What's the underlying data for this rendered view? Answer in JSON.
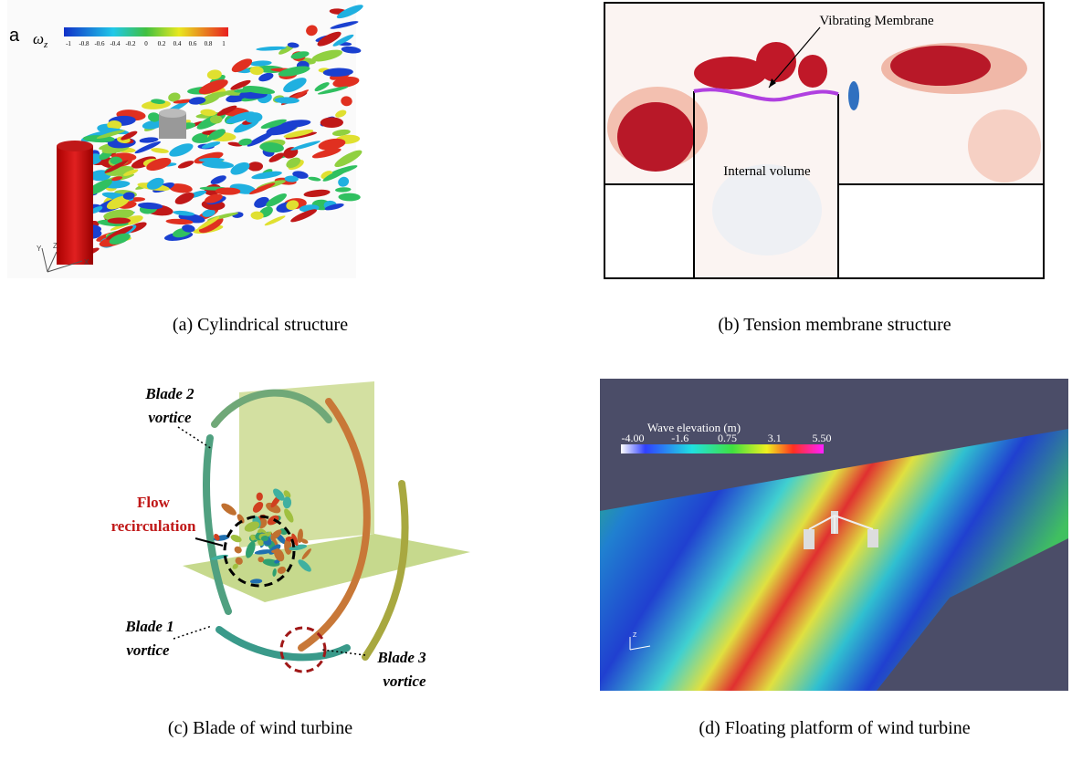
{
  "panels": [
    {
      "label": "a",
      "symbol": "ω",
      "symbol_sub": "z",
      "colorbar_labels": [
        "-1",
        "-0.8",
        "-0.6",
        "-0.4",
        "-0.2",
        "0",
        "0.2",
        "0.4",
        "0.6",
        "0.8",
        "1"
      ],
      "axes": [
        "Y",
        "Z",
        "X"
      ],
      "caption": "(a) Cylindrical structure"
    },
    {
      "annotations": [
        "Vibrating Membrane",
        "Internal volume"
      ],
      "caption": "(b) Tension membrane structure"
    },
    {
      "annotations": [
        {
          "lines": [
            "Blade 2",
            "vortice"
          ]
        },
        {
          "lines": [
            "Flow",
            "recirculation"
          ]
        },
        {
          "lines": [
            "Blade 1",
            "vortice"
          ]
        },
        {
          "lines": [
            "Blade 3",
            "vortice"
          ]
        }
      ],
      "caption": "(c) Blade of wind turbine"
    },
    {
      "colorbar_title": "Wave elevation (m)",
      "colorbar_labels": [
        "-4.00",
        "-1.6",
        "0.75",
        "3.1",
        "5.50"
      ],
      "axis": "Z",
      "caption": "(d) Floating platform of wind turbine"
    }
  ]
}
